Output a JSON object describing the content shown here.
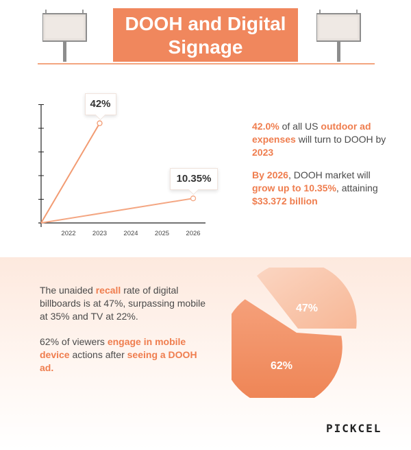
{
  "header": {
    "title_line1": "DOOH and Digital",
    "title_line2": "Signage"
  },
  "chart_data": {
    "type": "line",
    "x": [
      "2022",
      "2023",
      "2024",
      "2025",
      "2026"
    ],
    "series": [
      {
        "points": [
          [
            "origin",
            0
          ],
          [
            "2023",
            42
          ]
        ],
        "label": "42%"
      },
      {
        "points": [
          [
            "origin",
            0
          ],
          [
            "2026",
            10.35
          ]
        ],
        "label": "10.35%"
      }
    ],
    "labels": [
      "42%",
      "10.35%"
    ]
  },
  "facts": {
    "f1": {
      "a": "42.0%",
      "b": " of all US ",
      "c": "outdoor ad expenses",
      "d": " will turn to DOOH by ",
      "e": "2023"
    },
    "f2": {
      "a": "By 2026",
      "b": ", DOOH market will ",
      "c": "grow up to 10.35%",
      "d": ", attaining ",
      "e": "$33.372 billion"
    }
  },
  "recall": {
    "p1": {
      "a": "The unaided ",
      "b": "recall",
      "c": " rate of digital billboards is at 47%, surpassing mobile at 35% and TV at 22%."
    },
    "p2": {
      "a": "62% of viewers ",
      "b": "engage in mobile device",
      "c": " actions after ",
      "d": "seeing a DOOH ad."
    }
  },
  "pie_data": {
    "type": "pie",
    "slices": [
      {
        "label": "47%",
        "value": 47
      },
      {
        "label": "62%",
        "value": 62
      }
    ]
  },
  "brand": {
    "logo": "PICKCEL"
  },
  "colors": {
    "accent": "#f0875d",
    "accent_light": "#f6b391",
    "text": "#4a4a4a"
  }
}
